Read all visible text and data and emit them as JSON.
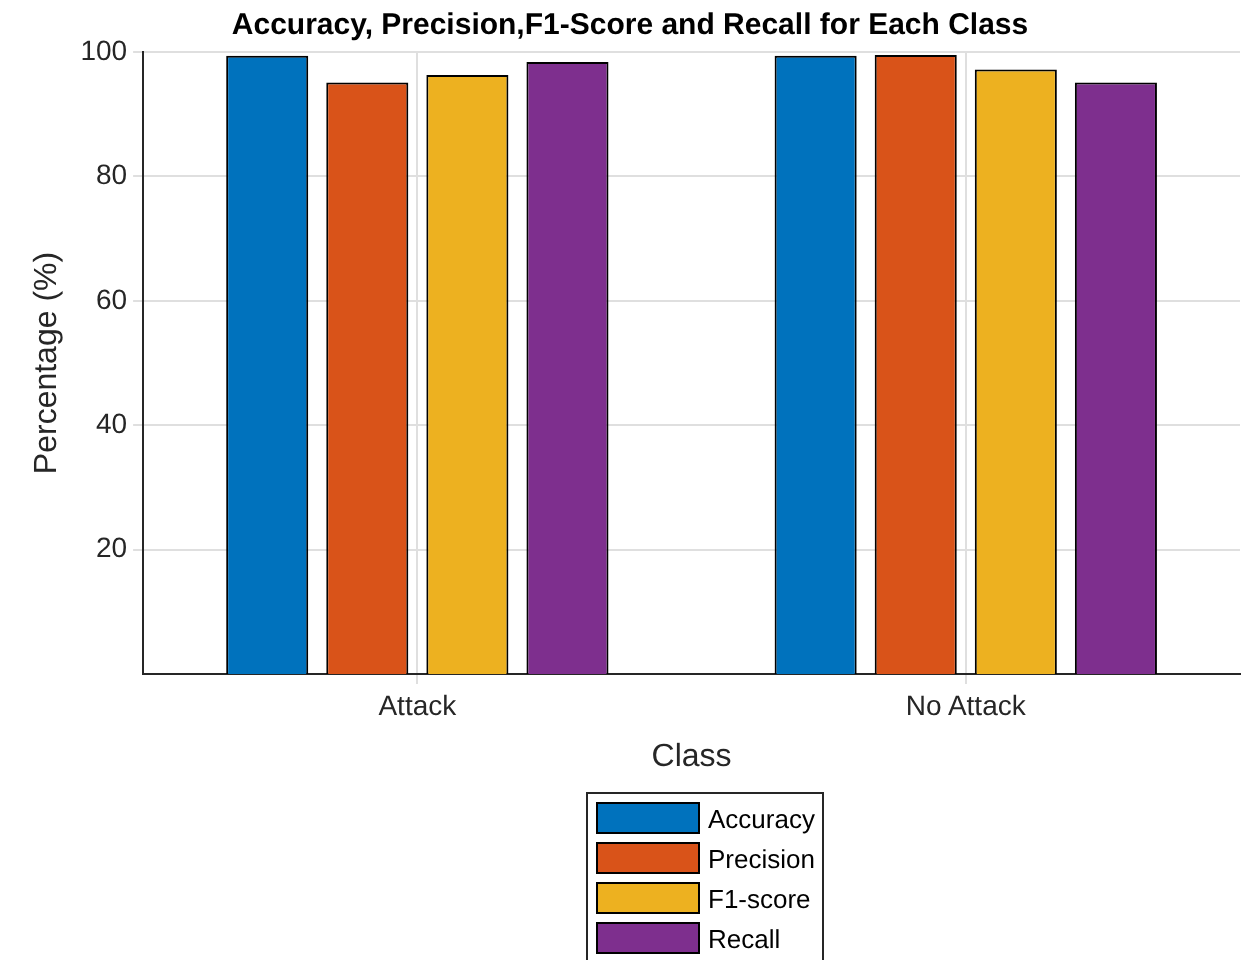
{
  "chart_data": {
    "type": "bar",
    "title": "Accuracy, Precision,F1-Score and Recall for Each Class",
    "xlabel": "Class",
    "ylabel": "Percentage (%)",
    "categories": [
      "Attack",
      "No Attack"
    ],
    "series": [
      {
        "name": "Accuracy",
        "color": "#0072bd",
        "values": [
          99.4,
          99.4
        ]
      },
      {
        "name": "Precision",
        "color": "#d95319",
        "values": [
          95.1,
          99.5
        ]
      },
      {
        "name": "F1-score",
        "color": "#edb120",
        "values": [
          96.3,
          97.2
        ]
      },
      {
        "name": "Recall",
        "color": "#7e2f8e",
        "values": [
          98.4,
          95.1
        ]
      }
    ],
    "ylim": [
      0,
      100
    ],
    "yticks": [
      20,
      40,
      60,
      80,
      100
    ],
    "grid": true,
    "legend": "bottom"
  }
}
